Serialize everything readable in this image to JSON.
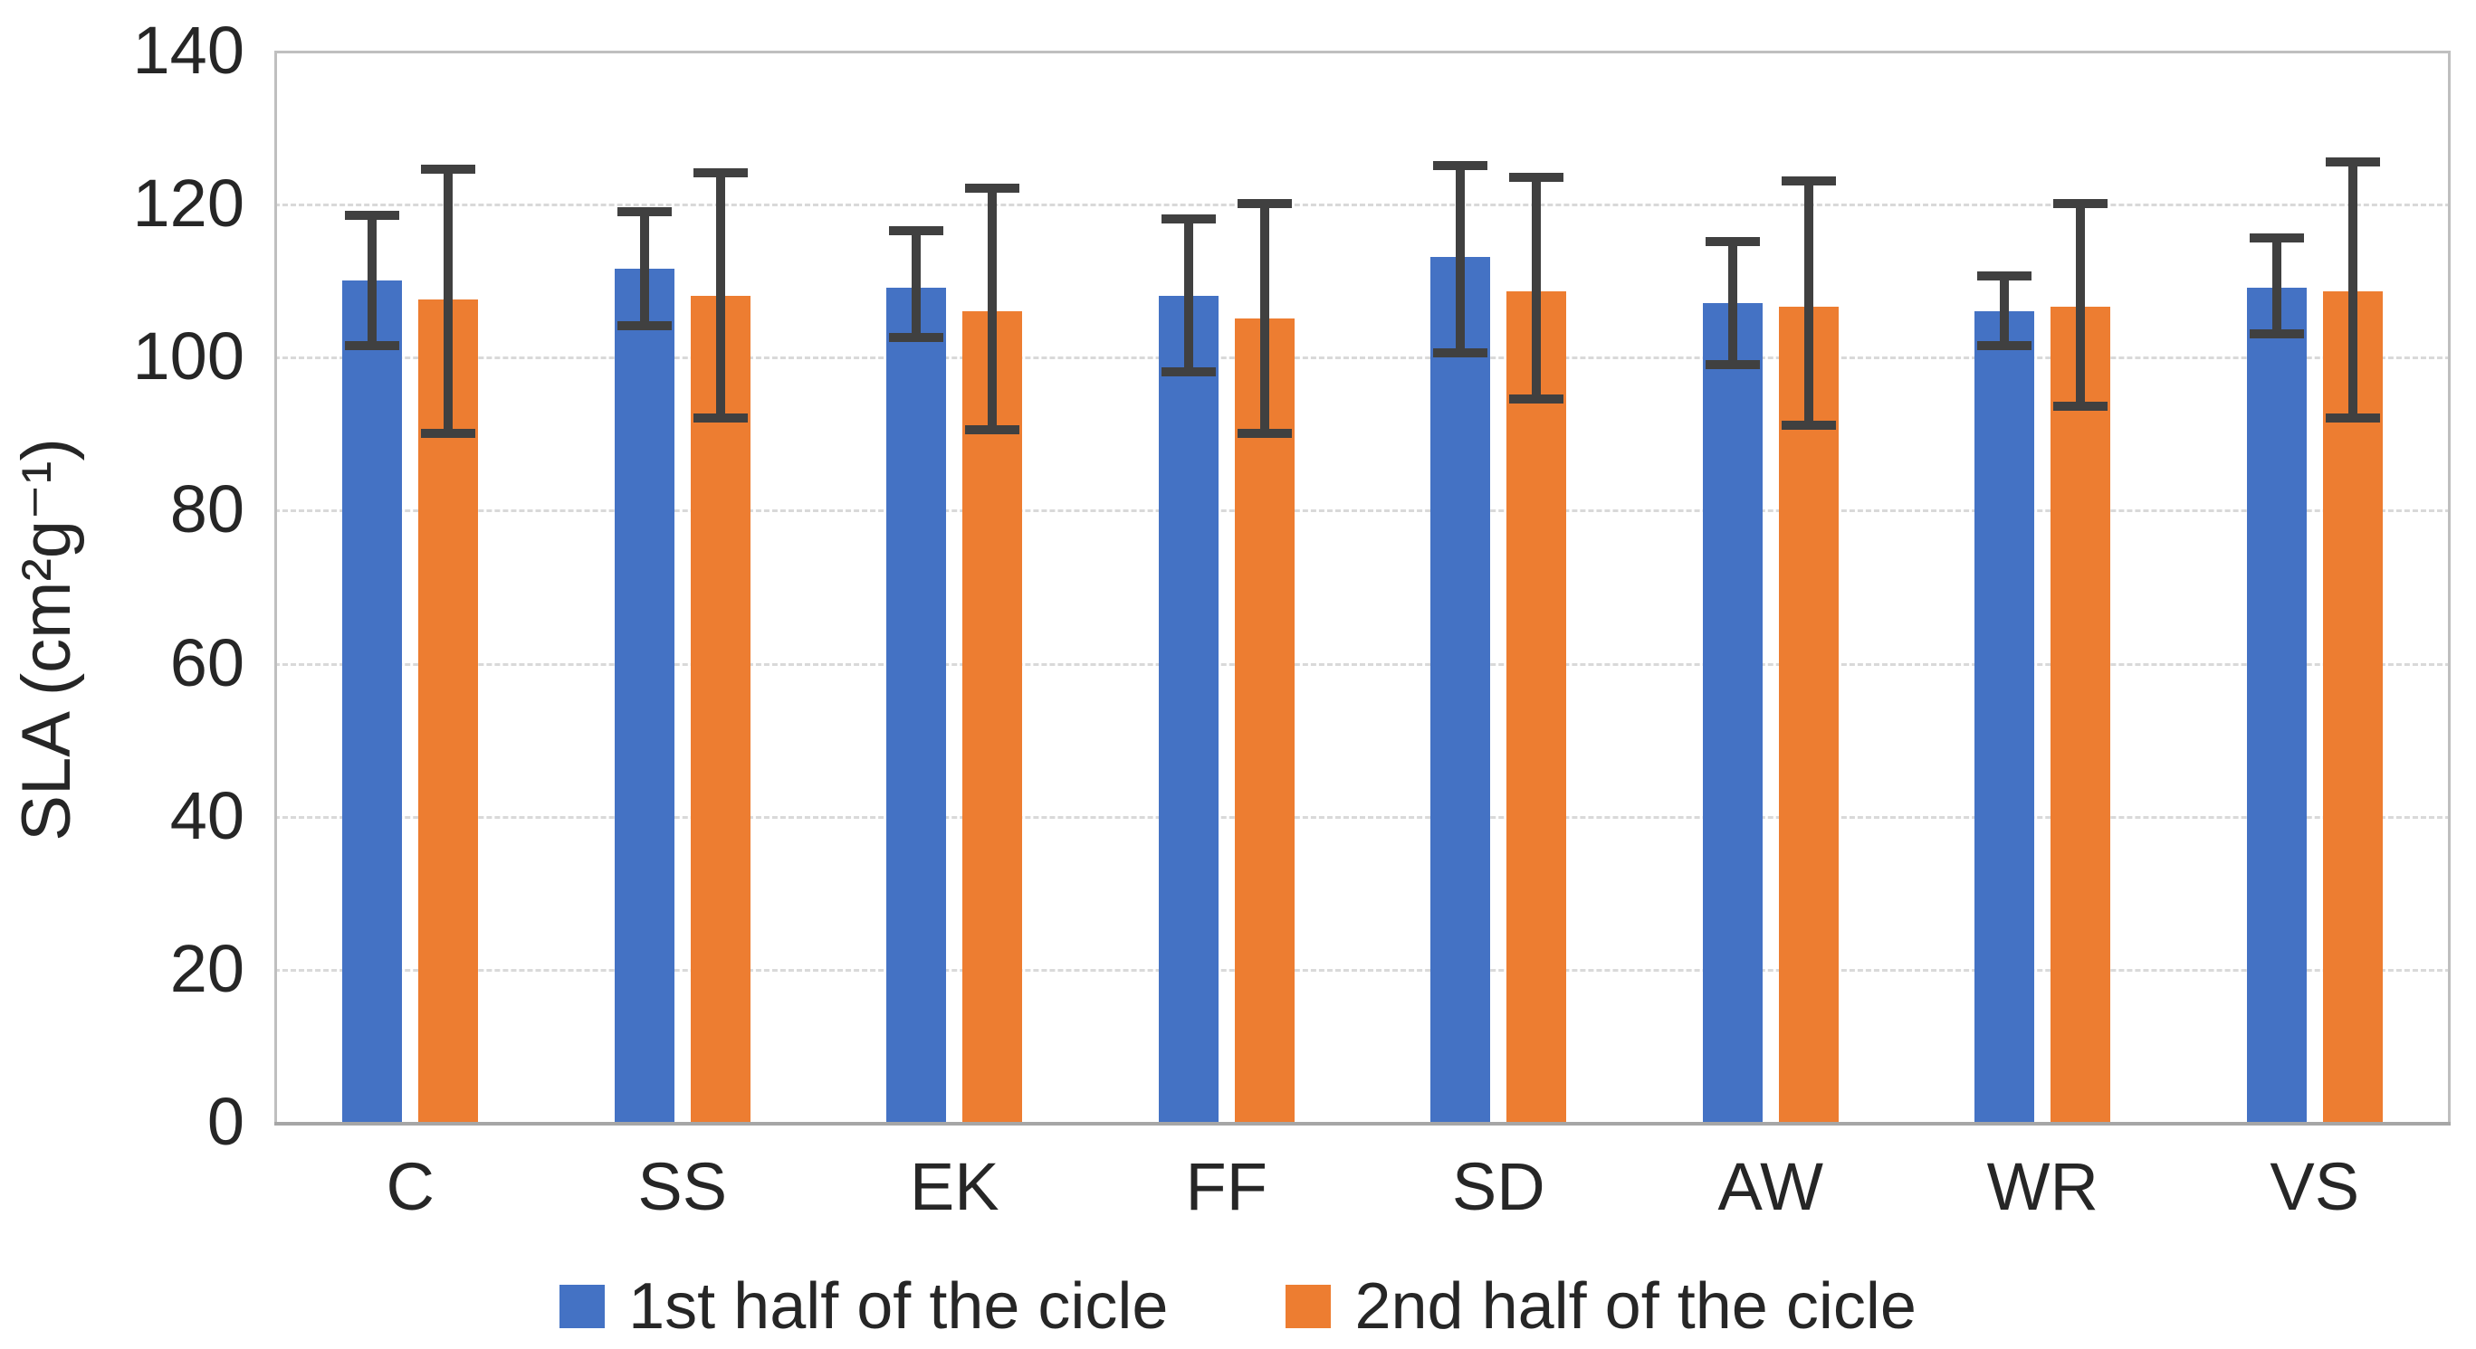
{
  "figure": {
    "background": "#FFFFFF",
    "text_color": "#262626",
    "gridline_color": "#D9D9D9",
    "plot_border_color": "#BFBFBF",
    "axis_line_color": "#A6A6A6",
    "error_bar_color": "#404040"
  },
  "chart_data": {
    "type": "bar",
    "title": "",
    "xlabel": "",
    "ylabel": "SLA (cm²g⁻¹)",
    "ylim": [
      0,
      140
    ],
    "yticks": [
      0,
      20,
      40,
      60,
      80,
      100,
      120,
      140
    ],
    "grid": "horizontal-dashed",
    "legend_position": "bottom",
    "categories": [
      "C",
      "SS",
      "EK",
      "FF",
      "SD",
      "AW",
      "WR",
      "VS"
    ],
    "series": [
      {
        "name": "1st half of the cicle",
        "color": "#4472C4",
        "values": [
          110,
          111.5,
          109,
          108,
          113,
          107,
          106,
          109
        ],
        "error_low": [
          101.5,
          104,
          102.5,
          98,
          100.5,
          99,
          101.5,
          103
        ],
        "error_high": [
          118.5,
          119,
          116.5,
          118,
          125,
          115,
          110.5,
          115.5
        ]
      },
      {
        "name": "2nd half of the cicle",
        "color": "#ED7D31",
        "values": [
          107.5,
          108,
          106,
          105,
          108.5,
          106.5,
          106.5,
          108.5
        ],
        "error_low": [
          90,
          92,
          90.5,
          90,
          94.5,
          91,
          93.5,
          92
        ],
        "error_high": [
          124.5,
          124,
          122,
          120,
          123.5,
          123,
          120,
          125.5
        ]
      }
    ]
  }
}
